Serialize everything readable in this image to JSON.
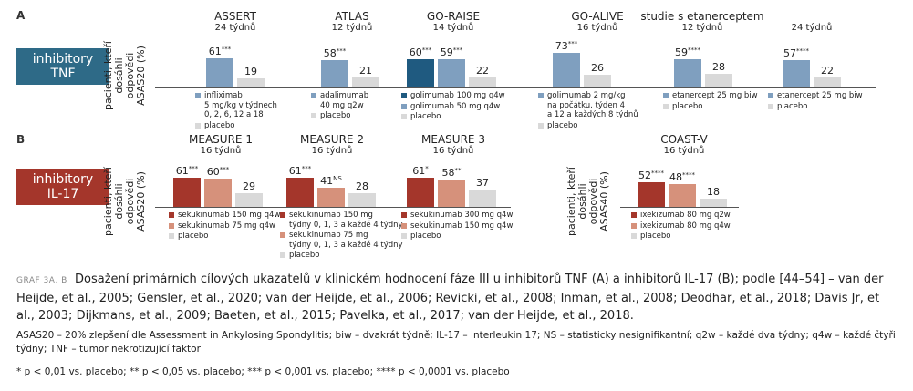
{
  "colors": {
    "tnf_badge": "#2e6a87",
    "il17_badge": "#a4362b",
    "tnf_bar": "#7f9fbf",
    "tnf_bar_dark": "#1f5a80",
    "il17_bar": "#a4362b",
    "il17_bar_light": "#d6917b",
    "placebo": "#d9d9d9"
  },
  "panels": [
    {
      "id": "A",
      "badge": "inhibitory\nTNF",
      "ylabel": "pacienti, kteří\ndosáhli odpovědi\nASAS20 (%)"
    },
    {
      "id": "B",
      "badge": "inhibitory\nIL-17",
      "ylabel_left": "pacienti, kteří\ndosáhli odpovědi\nASAS20 (%)",
      "ylabel_right": "pacienti, kteří\ndosáhli odpovědi\nASAS40 (%)"
    }
  ],
  "chart_data": [
    {
      "type": "bar",
      "panel": "A",
      "ylabel": "pacienti, kteří dosáhli odpovědi ASAS20 (%)",
      "groups": [
        {
          "title": "ASSERT",
          "weeks": "24 týdnů",
          "bars": [
            {
              "value": 61,
              "label": "61",
              "sig": "***",
              "color": "tnf"
            },
            {
              "value": 19,
              "label": "19",
              "sig": "",
              "color": "placebo"
            }
          ],
          "legend": [
            {
              "text": "infliximab\n5 mg/kg v týdnech\n0, 2, 6, 12 a 18",
              "color": "tnf"
            },
            {
              "text": "placebo",
              "color": "placebo"
            }
          ]
        },
        {
          "title": "ATLAS",
          "weeks": "12 týdnů",
          "bars": [
            {
              "value": 58,
              "label": "58",
              "sig": "***",
              "color": "tnf"
            },
            {
              "value": 21,
              "label": "21",
              "sig": "",
              "color": "placebo"
            }
          ],
          "legend": [
            {
              "text": "adalimumab\n40 mg q2w",
              "color": "tnf"
            },
            {
              "text": "placebo",
              "color": "placebo"
            }
          ]
        },
        {
          "title": "GO-RAISE",
          "weeks": "14 týdnů",
          "bars": [
            {
              "value": 60,
              "label": "60",
              "sig": "***",
              "color": "tnf_dark"
            },
            {
              "value": 59,
              "label": "59",
              "sig": "***",
              "color": "tnf"
            },
            {
              "value": 22,
              "label": "22",
              "sig": "",
              "color": "placebo"
            }
          ],
          "legend": [
            {
              "text": "golimumab 100 mg q4w",
              "color": "tnf_dark"
            },
            {
              "text": "golimumab 50 mg q4w",
              "color": "tnf"
            },
            {
              "text": "placebo",
              "color": "placebo"
            }
          ]
        },
        {
          "title": "GO-ALIVE",
          "weeks": "16 týdnů",
          "bars": [
            {
              "value": 73,
              "label": "73",
              "sig": "***",
              "color": "tnf"
            },
            {
              "value": 26,
              "label": "26",
              "sig": "",
              "color": "placebo"
            }
          ],
          "legend": [
            {
              "text": "golimumab 2 mg/kg\nna počátku, týden 4\na 12 a každých 8 týdnů",
              "color": "tnf"
            },
            {
              "text": "placebo",
              "color": "placebo"
            }
          ]
        },
        {
          "title": "studie s etanerceptem",
          "weeks": "12 týdnů",
          "bars": [
            {
              "value": 59,
              "label": "59",
              "sig": "****",
              "color": "tnf"
            },
            {
              "value": 28,
              "label": "28",
              "sig": "",
              "color": "placebo"
            }
          ],
          "legend": [
            {
              "text": "etanercept 25 mg biw",
              "color": "tnf"
            },
            {
              "text": "placebo",
              "color": "placebo"
            }
          ]
        },
        {
          "title": "",
          "weeks": "24 týdnů",
          "bars": [
            {
              "value": 57,
              "label": "57",
              "sig": "****",
              "color": "tnf"
            },
            {
              "value": 22,
              "label": "22",
              "sig": "",
              "color": "placebo"
            }
          ],
          "legend": [
            {
              "text": "etanercept 25 mg biw",
              "color": "tnf"
            },
            {
              "text": "placebo",
              "color": "placebo"
            }
          ]
        }
      ]
    },
    {
      "type": "bar",
      "panel": "B",
      "ylabel": "pacienti, kteří dosáhli odpovědi ASAS20 (%)",
      "groups": [
        {
          "title": "MEASURE 1",
          "weeks": "16 týdnů",
          "bars": [
            {
              "value": 61,
              "label": "61",
              "sig": "***",
              "color": "il17"
            },
            {
              "value": 60,
              "label": "60",
              "sig": "***",
              "color": "il17_light"
            },
            {
              "value": 29,
              "label": "29",
              "sig": "",
              "color": "placebo"
            }
          ],
          "legend": [
            {
              "text": "sekukinumab 150 mg q4w",
              "color": "il17"
            },
            {
              "text": "sekukinumab 75 mg q4w",
              "color": "il17_light"
            },
            {
              "text": "placebo",
              "color": "placebo"
            }
          ]
        },
        {
          "title": "MEASURE 2",
          "weeks": "16 týdnů",
          "bars": [
            {
              "value": 61,
              "label": "61",
              "sig": "***",
              "color": "il17"
            },
            {
              "value": 41,
              "label": "41",
              "sig": "NS",
              "color": "il17_light"
            },
            {
              "value": 28,
              "label": "28",
              "sig": "",
              "color": "placebo"
            }
          ],
          "legend": [
            {
              "text": "sekukinumab 150 mg\ntýdny 0, 1, 3 a každé 4 týdny",
              "color": "il17"
            },
            {
              "text": "sekukinumab 75 mg\ntýdny 0, 1, 3 a každé 4 týdny",
              "color": "il17_light"
            },
            {
              "text": "placebo",
              "color": "placebo"
            }
          ]
        },
        {
          "title": "MEASURE 3",
          "weeks": "16 týdnů",
          "bars": [
            {
              "value": 61,
              "label": "61",
              "sig": "*",
              "color": "il17"
            },
            {
              "value": 58,
              "label": "58",
              "sig": "**",
              "color": "il17_light"
            },
            {
              "value": 37,
              "label": "37",
              "sig": "",
              "color": "placebo"
            }
          ],
          "legend": [
            {
              "text": "sekukinumab 300 mg q4w",
              "color": "il17"
            },
            {
              "text": "sekukinumab 150 mg q4w",
              "color": "il17_light"
            },
            {
              "text": "placebo",
              "color": "placebo"
            }
          ]
        }
      ]
    },
    {
      "type": "bar",
      "panel": "B",
      "ylabel": "pacienti, kteří dosáhli odpovědi ASAS40 (%)",
      "groups": [
        {
          "title": "COAST-V",
          "weeks": "16 týdnů",
          "bars": [
            {
              "value": 52,
              "label": "52",
              "sig": "****",
              "color": "il17"
            },
            {
              "value": 48,
              "label": "48",
              "sig": "****",
              "color": "il17_light"
            },
            {
              "value": 18,
              "label": "18",
              "sig": "",
              "color": "placebo"
            }
          ],
          "legend": [
            {
              "text": "ixekizumab 80 mg q2w",
              "color": "il17"
            },
            {
              "text": "ixekizumab 80 mg q4w",
              "color": "il17_light"
            },
            {
              "text": "placebo",
              "color": "placebo"
            }
          ]
        }
      ]
    }
  ],
  "caption": {
    "lead": "GRAF 3A, B",
    "text": "Dosažení primárních cílových ukazatelů v klinickém hodnocení fáze III u inhibitorů TNF (A) a inhibitorů IL-17 (B); podle [44–54] – van der Heijde, et al., 2005; Gensler, et al., 2020; van der Heijde, et al., 2006; Revicki, et al., 2008; Inman, et al., 2008; Deodhar, et al., 2018; Davis Jr, et al., 2003; Dijkmans, et al., 2009; Baeten, et al., 2015; Pavelka, et al., 2017; van der Heijde, et al., 2018.",
    "abbreviations": "ASAS20 – 20% zlepšení dle Assessment in Ankylosing Spondylitis; biw – dvakrát týdně; IL-17 – interleukin 17; NS – statisticky nesignifikantní; q2w – každé dva týdny; q4w – každé čtyři týdny; TNF – tumor nekrotizující faktor",
    "footnote": "* p < 0,01 vs. placebo; ** p < 0,05 vs. placebo; *** p < 0,001 vs. placebo; **** p < 0,0001 vs. placebo"
  }
}
